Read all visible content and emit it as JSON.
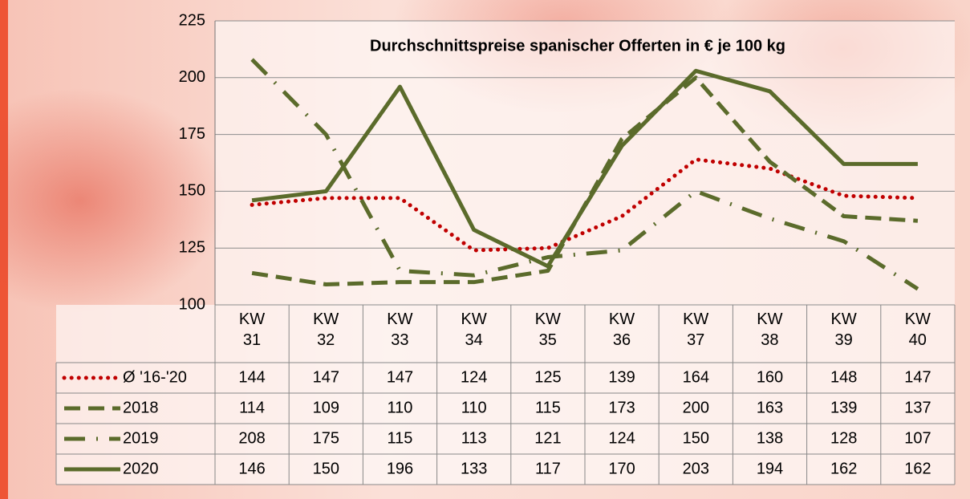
{
  "chart_data": {
    "type": "line",
    "title": "Durchschnittspreise spanischer Offerten in € je 100 kg",
    "categories": [
      "KW 31",
      "KW 32",
      "KW 33",
      "KW 34",
      "KW 35",
      "KW 36",
      "KW 37",
      "KW 38",
      "KW 39",
      "KW 40"
    ],
    "series": [
      {
        "name": "Ø '16-'20",
        "color": "#c00000",
        "style": "dotted",
        "values": [
          144,
          147,
          147,
          124,
          125,
          139,
          164,
          160,
          148,
          147
        ]
      },
      {
        "name": "2018",
        "color": "#5b6b2b",
        "style": "dashed",
        "values": [
          114,
          109,
          110,
          110,
          115,
          173,
          200,
          163,
          139,
          137
        ]
      },
      {
        "name": "2019",
        "color": "#5b6b2b",
        "style": "dashdot",
        "values": [
          208,
          175,
          115,
          113,
          121,
          124,
          150,
          138,
          128,
          107
        ]
      },
      {
        "name": "2020",
        "color": "#5b6b2b",
        "style": "solid",
        "values": [
          146,
          150,
          196,
          133,
          117,
          170,
          203,
          194,
          162,
          162
        ]
      }
    ],
    "ylim": [
      100,
      225
    ],
    "yticks": [
      100,
      125,
      150,
      175,
      200,
      225
    ],
    "grid": true
  }
}
